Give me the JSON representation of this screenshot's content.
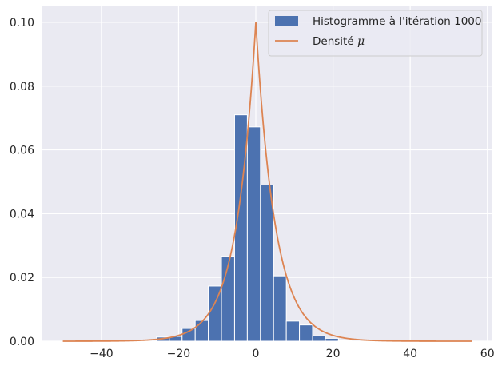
{
  "chart_data": {
    "type": "bar",
    "title": "",
    "xlabel": "",
    "ylabel": "",
    "xlim": [
      -55.3,
      61.3
    ],
    "ylim": [
      0,
      0.105
    ],
    "xticks": [
      -40,
      -20,
      0,
      20,
      40,
      60
    ],
    "xtick_labels": [
      "−40",
      "−20",
      "0",
      "20",
      "40",
      "60"
    ],
    "yticks": [
      0.0,
      0.02,
      0.04,
      0.06,
      0.08,
      0.1
    ],
    "ytick_labels": [
      "0.00",
      "0.02",
      "0.04",
      "0.06",
      "0.08",
      "0.10"
    ],
    "grid": true,
    "legend_placement": "top-right",
    "colors": {
      "background": "#eaeaf2",
      "grid": "#ffffff",
      "histogram": "#4c72b0",
      "density": "#dd8452"
    },
    "series": [
      {
        "name": "Histogramme à l'itération 1000",
        "kind": "histogram",
        "bin_edges": [
          -25.8,
          -22.4,
          -19.1,
          -15.7,
          -12.3,
          -8.9,
          -5.5,
          -2.2,
          1.2,
          4.6,
          7.9,
          11.3,
          14.7,
          18.0,
          21.4,
          24.8
        ],
        "values": [
          0.0013,
          0.0015,
          0.004,
          0.0065,
          0.0173,
          0.0267,
          0.071,
          0.0672,
          0.049,
          0.0205,
          0.0063,
          0.0051,
          0.0017,
          0.0009,
          0.0002
        ]
      },
      {
        "name": "Densité μ",
        "kind": "line",
        "function": "laplace",
        "loc": 0,
        "scale": 5,
        "x_range": [
          -50,
          56
        ]
      }
    ]
  },
  "legend": {
    "hist_label": "Histogramme à l'itération 1000",
    "density_label_text": "Densité",
    "density_label_symbol": "μ"
  }
}
